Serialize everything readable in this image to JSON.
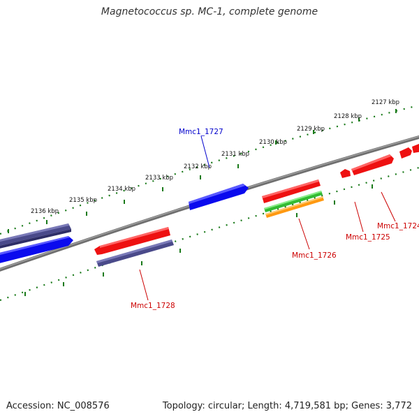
{
  "title": "Magnetococcus sp. MC-1, complete genome",
  "footer": {
    "accession": "Accession: NC_008576",
    "summary": "Topology: circular; Length: 4,719,581 bp; Genes: 3,772"
  },
  "ruler": {
    "color": "#1a7a1a",
    "labels": [
      "2127 kbp",
      "2128 kbp",
      "2129 kbp",
      "2130 kbp",
      "2131 kbp",
      "2132 kbp",
      "2133 kbp",
      "2134 kbp",
      "2135 kbp",
      "2136 kbp"
    ]
  },
  "colors": {
    "backbone": "#7a7a7a",
    "red_gene": "#ee1111",
    "blue_gene": "#0a0aee",
    "navy_gene": "#4a4a8a",
    "green_gene": "#33bb33",
    "orange_gene": "#ff9911",
    "red_label": "#cc0000",
    "blue_label": "#0000cc"
  },
  "gene_labels": [
    {
      "name": "Mmc1_1727",
      "color": "blue"
    },
    {
      "name": "Mmc1_1724",
      "color": "red"
    },
    {
      "name": "Mmc1_1725",
      "color": "red"
    },
    {
      "name": "Mmc1_1726",
      "color": "red"
    },
    {
      "name": "Mmc1_1728",
      "color": "red"
    }
  ]
}
